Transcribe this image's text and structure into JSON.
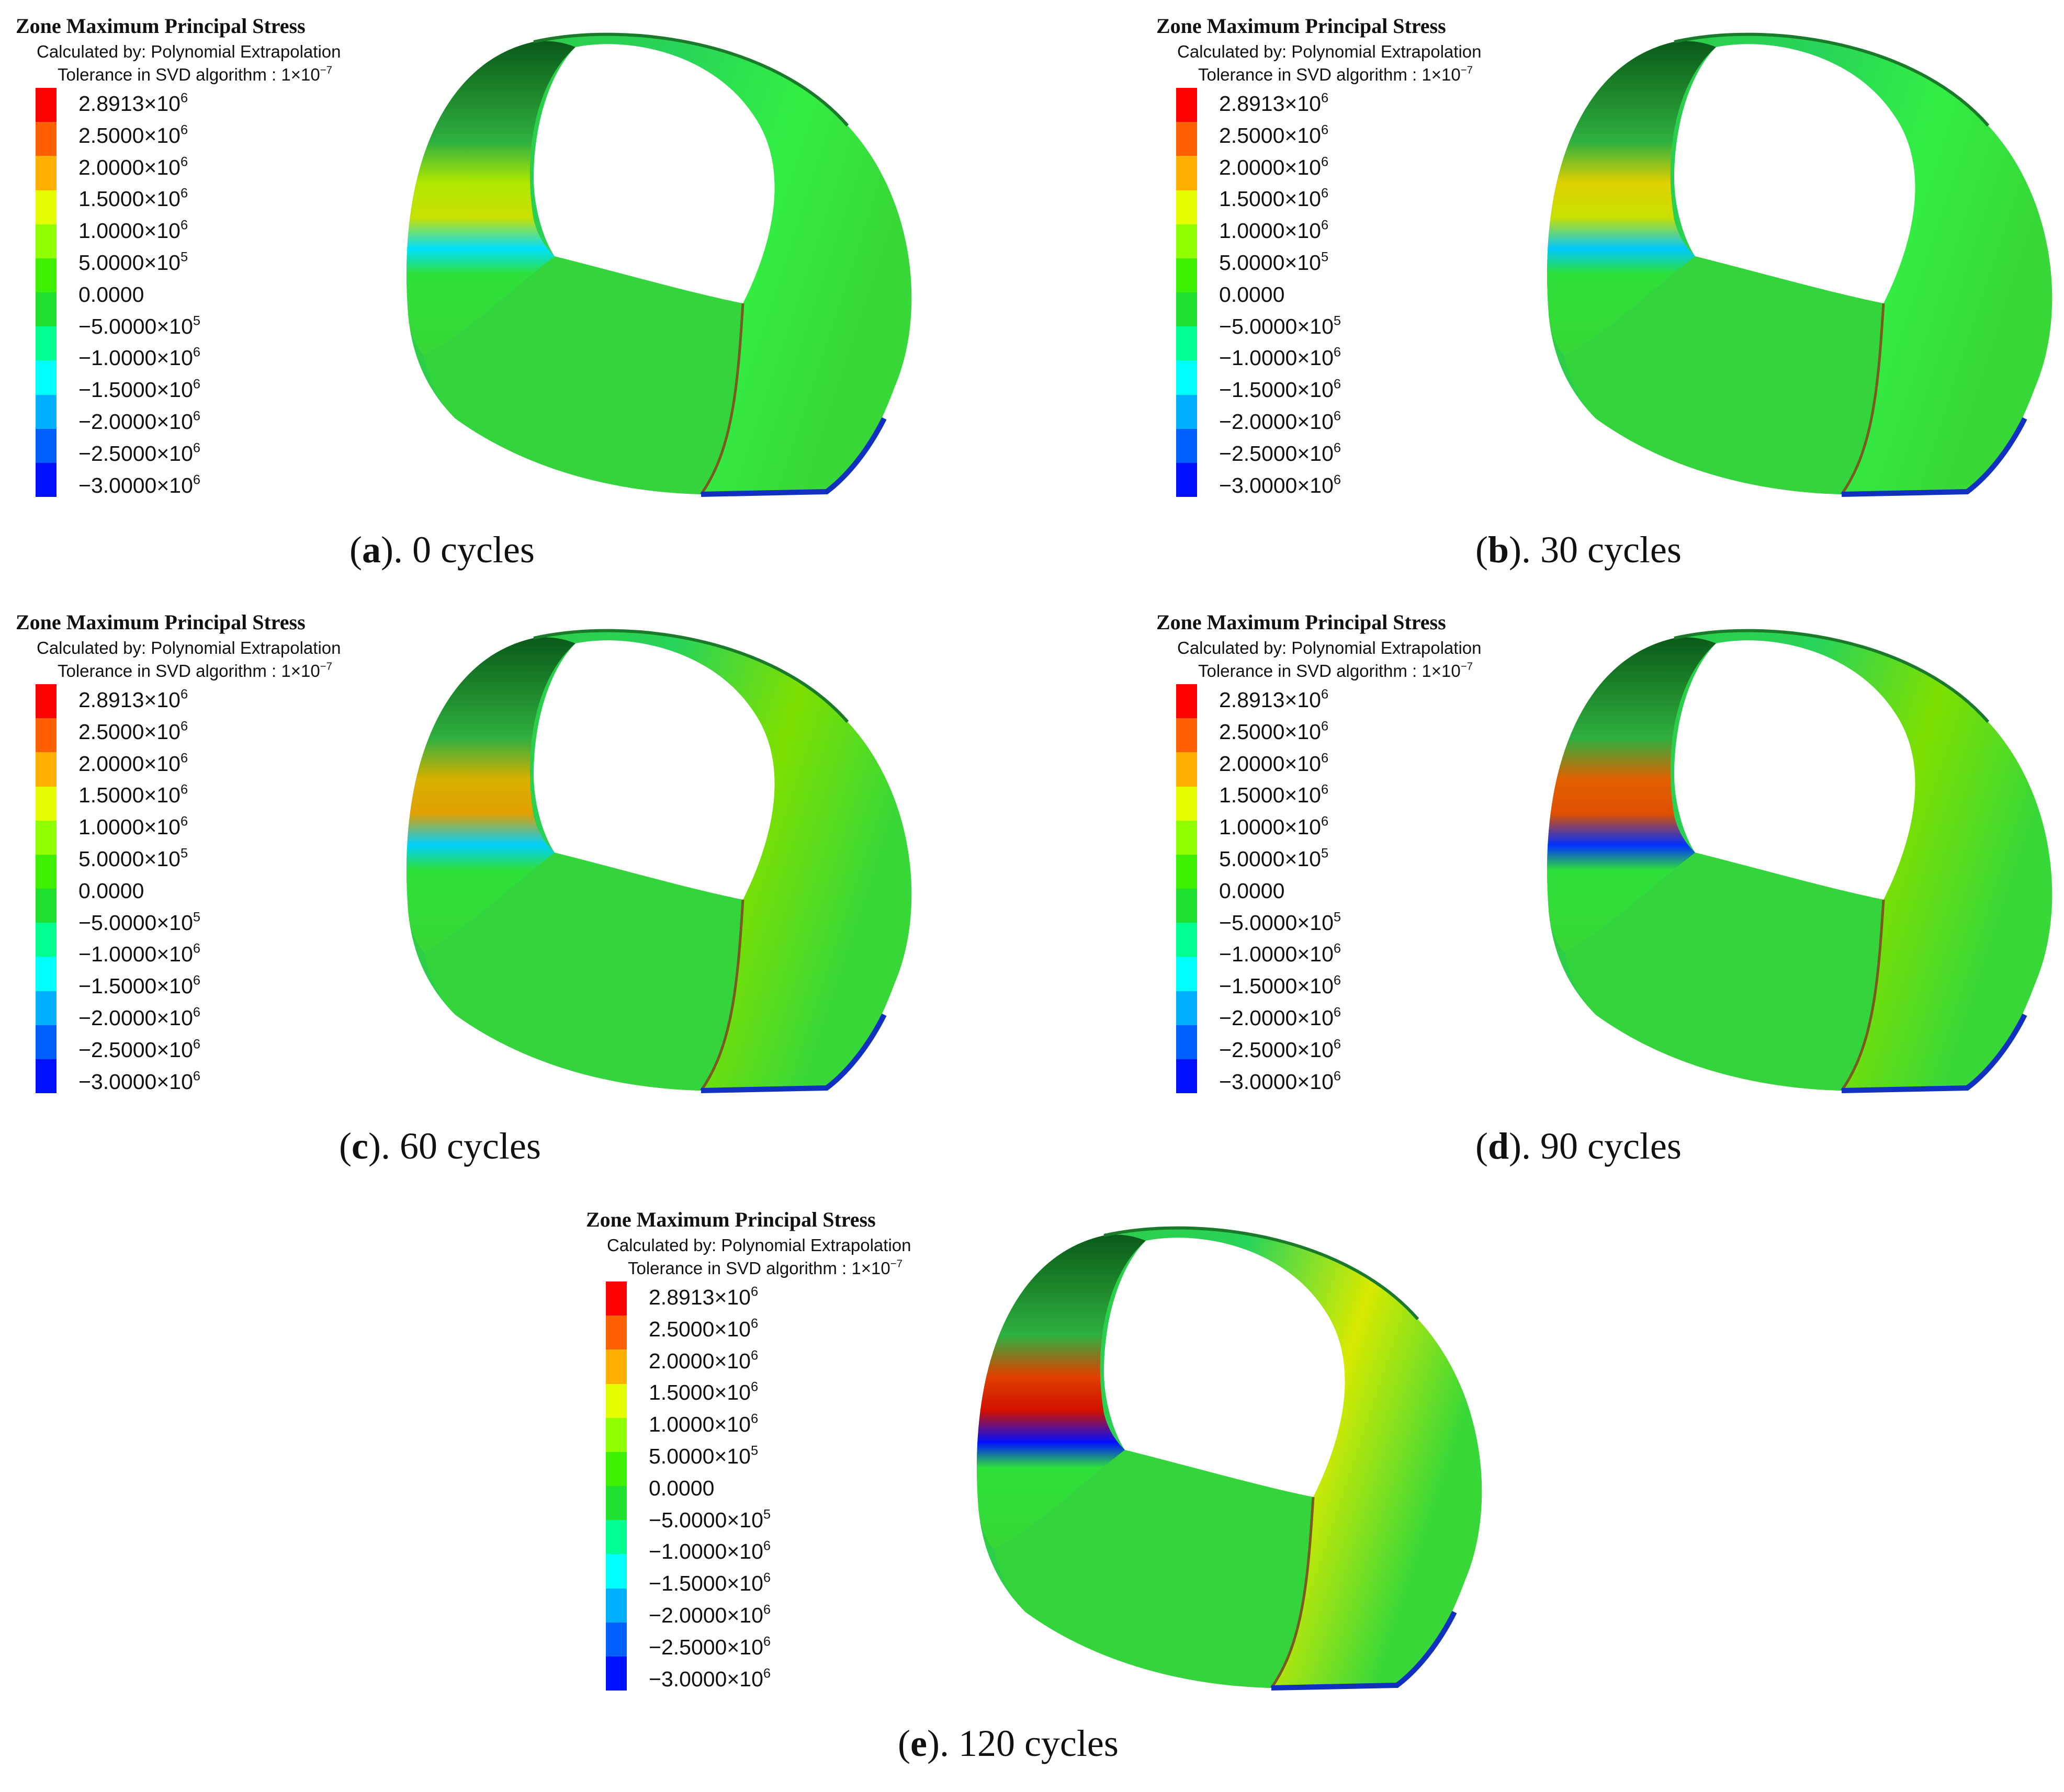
{
  "legend": {
    "title": "Zone Maximum Principal Stress",
    "calculated_by": "Calculated by: Polynomial Extrapolation",
    "tolerance_prefix": "Tolerance in SVD algorithm : 1×10",
    "tolerance_exp": "−7",
    "ticks": [
      {
        "mantissa": "2.8913×10",
        "exp": "6"
      },
      {
        "mantissa": "2.5000×10",
        "exp": "6"
      },
      {
        "mantissa": "2.0000×10",
        "exp": "6"
      },
      {
        "mantissa": "1.5000×10",
        "exp": "6"
      },
      {
        "mantissa": "1.0000×10",
        "exp": "6"
      },
      {
        "mantissa": "5.0000×10",
        "exp": "5"
      },
      {
        "mantissa": "0.0000",
        "exp": ""
      },
      {
        "mantissa": "−5.0000×10",
        "exp": "5"
      },
      {
        "mantissa": "−1.0000×10",
        "exp": "6"
      },
      {
        "mantissa": "−1.5000×10",
        "exp": "6"
      },
      {
        "mantissa": "−2.0000×10",
        "exp": "6"
      },
      {
        "mantissa": "−2.5000×10",
        "exp": "6"
      },
      {
        "mantissa": "−3.0000×10",
        "exp": "6"
      }
    ],
    "colors": [
      "#ff0000",
      "#ff6000",
      "#ffb000",
      "#e6ff00",
      "#90ff00",
      "#3cf000",
      "#20e030",
      "#00ff90",
      "#00ffff",
      "#00b0ff",
      "#0060ff",
      "#0010ff"
    ]
  },
  "panels": [
    {
      "letter": "a",
      "caption": ". 0 cycles"
    },
    {
      "letter": "b",
      "caption": ". 30 cycles"
    },
    {
      "letter": "c",
      "caption": ". 60 cycles"
    },
    {
      "letter": "d",
      "caption": ". 90 cycles"
    },
    {
      "letter": "e",
      "caption": ". 120 cycles"
    }
  ]
}
